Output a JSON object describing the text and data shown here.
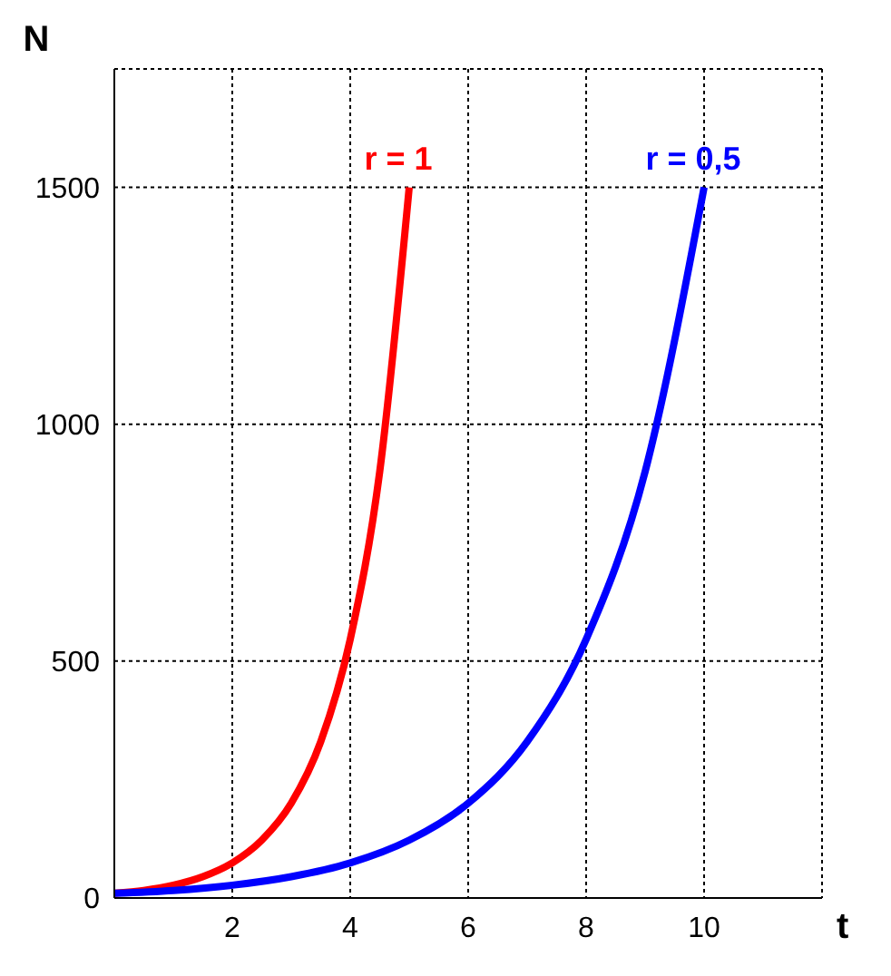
{
  "chart_data": {
    "type": "line",
    "xlabel": "t",
    "ylabel": "N",
    "xlim": [
      0,
      12
    ],
    "xticks": [
      2,
      4,
      6,
      8,
      10
    ],
    "ylim": [
      0,
      1750
    ],
    "yticks": [
      0,
      500,
      1000,
      1500
    ],
    "grid": true,
    "legend": false,
    "marker": "none",
    "line_style": "solid",
    "series": [
      {
        "name": "r = 1",
        "color": "#ff0000",
        "x": [
          0,
          0.5,
          1,
          1.5,
          2,
          2.5,
          3,
          3.5,
          4,
          4.5,
          5
        ],
        "values": [
          10,
          16,
          27,
          45,
          74,
          122,
          200,
          330,
          546,
          900,
          1500
        ]
      },
      {
        "name": "r = 0,5",
        "color": "#0000ff",
        "x": [
          0,
          1,
          2,
          3,
          4,
          5,
          6,
          7,
          8,
          9,
          10
        ],
        "values": [
          10,
          16,
          27,
          45,
          74,
          122,
          200,
          330,
          546,
          900,
          1500
        ]
      }
    ]
  }
}
